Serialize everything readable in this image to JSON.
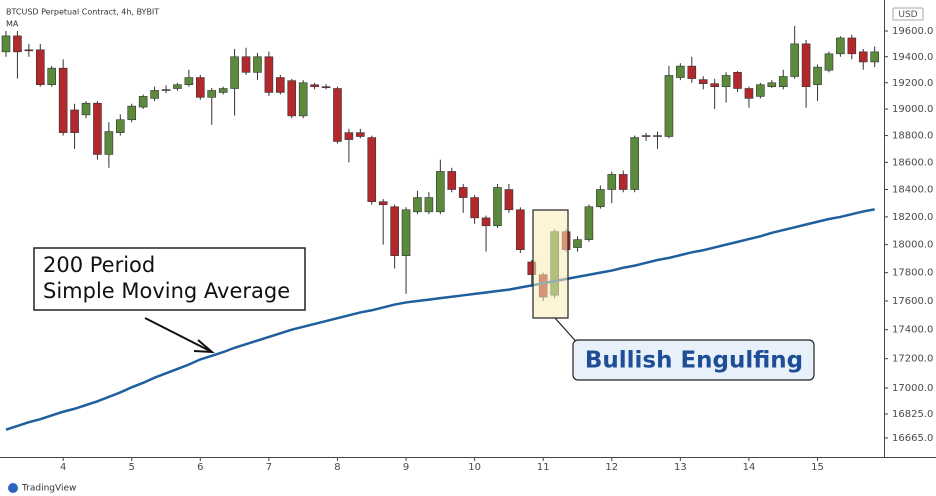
{
  "chart_data": {
    "type": "candlestick",
    "title": "BTCUSD Perpetual Contract, 4h, BYBIT",
    "currency": "USD",
    "branding": "TradingView",
    "categories": [
      null,
      null,
      null,
      null,
      null,
      "4",
      null,
      null,
      null,
      null,
      null,
      "5",
      null,
      null,
      null,
      null,
      null,
      "6",
      null,
      null,
      null,
      null,
      null,
      "7",
      null,
      null,
      null,
      null,
      null,
      "8",
      null,
      null,
      null,
      null,
      null,
      "9",
      null,
      null,
      null,
      null,
      null,
      "10",
      null,
      null,
      null,
      null,
      null,
      "11",
      null,
      null,
      null,
      null,
      null,
      "12",
      null,
      null,
      null,
      null,
      null,
      "13",
      null,
      null,
      null,
      null,
      null,
      "14",
      null,
      null,
      null,
      null,
      null,
      "15",
      null,
      null,
      null,
      null,
      null
    ],
    "open": [
      19438,
      19562,
      19454,
      19454,
      19185,
      19312,
      18993,
      18956,
      19044,
      18659,
      18822,
      18919,
      19015,
      19081,
      19141,
      19156,
      19185,
      19240,
      19089,
      19126,
      19156,
      19400,
      19280,
      19400,
      19240,
      19216,
      18948,
      19185,
      19170,
      19156,
      18822,
      18822,
      18785,
      18311,
      18274,
      17921,
      18237,
      18237,
      18237,
      18533,
      18415,
      18341,
      18193,
      18136,
      18400,
      18252,
      17876,
      17786,
      17641,
      18093,
      17979,
      18036,
      18274,
      18400,
      18511,
      18400,
      18800,
      18793,
      18793,
      19240,
      19328,
      19224,
      19193,
      19170,
      19280,
      19156,
      19096,
      19170,
      19170,
      19248,
      19500,
      19185,
      19296,
      19423,
      19546,
      19438,
      19360
    ],
    "high": [
      19600,
      19600,
      19500,
      19500,
      19330,
      19380,
      19040,
      19060,
      19060,
      18900,
      18960,
      19040,
      19110,
      19170,
      19180,
      19200,
      19300,
      19260,
      19160,
      19170,
      19460,
      19470,
      19430,
      19440,
      19260,
      19230,
      19220,
      19200,
      19190,
      19170,
      18850,
      18850,
      18800,
      18330,
      18290,
      18270,
      18390,
      18380,
      18620,
      18560,
      18440,
      18360,
      18210,
      18440,
      18440,
      18270,
      17890,
      17800,
      18110,
      18110,
      18060,
      18290,
      18430,
      18530,
      18540,
      18800,
      18820,
      18830,
      19330,
      19350,
      19400,
      19250,
      19230,
      19280,
      19290,
      19170,
      19200,
      19220,
      19300,
      19640,
      19530,
      19340,
      19440,
      19560,
      19570,
      19460,
      19480
    ],
    "low": [
      19400,
      19232,
      19400,
      19170,
      19170,
      18800,
      18700,
      18930,
      18620,
      18560,
      18800,
      18900,
      19000,
      19060,
      19120,
      19140,
      19170,
      19070,
      18880,
      19110,
      18950,
      19260,
      19220,
      19100,
      19110,
      18930,
      18930,
      19150,
      19150,
      18740,
      18600,
      18780,
      18290,
      18000,
      17830,
      17650,
      18220,
      18220,
      18220,
      18380,
      18230,
      18150,
      17950,
      18120,
      18230,
      17940,
      17700,
      17600,
      17620,
      17950,
      17950,
      18020,
      18260,
      18300,
      18380,
      18380,
      18760,
      18700,
      18780,
      19220,
      19200,
      19150,
      19000,
      19050,
      19130,
      19010,
      19080,
      19160,
      19150,
      19230,
      19010,
      19060,
      19280,
      19400,
      19380,
      19300,
      19320
    ],
    "close": [
      19562,
      19438,
      19446,
      19185,
      19312,
      18822,
      18822,
      19044,
      18659,
      18830,
      18919,
      19022,
      19096,
      19141,
      19148,
      19185,
      19240,
      19089,
      19141,
      19156,
      19400,
      19280,
      19400,
      19126,
      19126,
      18948,
      19200,
      19170,
      19163,
      18756,
      18770,
      18793,
      18311,
      18289,
      17921,
      18252,
      18341,
      18341,
      18533,
      18400,
      18341,
      18193,
      18136,
      18415,
      18252,
      17964,
      17786,
      17628,
      18093,
      17964,
      18036,
      18274,
      18400,
      18511,
      18400,
      18785,
      18793,
      18800,
      19256,
      19328,
      19232,
      19193,
      19170,
      19256,
      19156,
      19081,
      19185,
      19200,
      19248,
      19500,
      19170,
      19320,
      19423,
      19546,
      19423,
      19360,
      19438
    ],
    "up_color": "#5b8a3c",
    "down_color": "#b3282d",
    "overlay": {
      "name": "MA",
      "color": "#1f5f9e",
      "values": [
        16720,
        16745,
        16770,
        16790,
        16815,
        16840,
        16860,
        16885,
        16910,
        16940,
        16970,
        17005,
        17035,
        17070,
        17100,
        17130,
        17160,
        17195,
        17220,
        17245,
        17275,
        17300,
        17325,
        17350,
        17375,
        17400,
        17420,
        17440,
        17460,
        17480,
        17500,
        17520,
        17535,
        17555,
        17575,
        17590,
        17600,
        17610,
        17620,
        17630,
        17640,
        17650,
        17660,
        17670,
        17680,
        17695,
        17710,
        17725,
        17740,
        17755,
        17770,
        17785,
        17800,
        17815,
        17835,
        17850,
        17870,
        17890,
        17905,
        17925,
        17945,
        17960,
        17980,
        18000,
        18020,
        18040,
        18060,
        18085,
        18105,
        18125,
        18145,
        18165,
        18185,
        18200,
        18220,
        18240,
        18255
      ]
    },
    "ylim": [
      16552,
      19844
    ],
    "log_scale": true,
    "grid": false,
    "yticks": [
      {
        "value": 19600,
        "label": "19600.0"
      },
      {
        "value": 19400,
        "label": "19400.0"
      },
      {
        "value": 19200,
        "label": "19200.0"
      },
      {
        "value": 19000,
        "label": "19000.0"
      },
      {
        "value": 18800,
        "label": "18800.0"
      },
      {
        "value": 18600,
        "label": "18600.0"
      },
      {
        "value": 18400,
        "label": "18400.0"
      },
      {
        "value": 18200,
        "label": "18200.0"
      },
      {
        "value": 18000,
        "label": "18000.0"
      },
      {
        "value": 17800,
        "label": "17800.0"
      },
      {
        "value": 17600,
        "label": "17600.0"
      },
      {
        "value": 17400,
        "label": "17400.0"
      },
      {
        "value": 17200,
        "label": "17200.0"
      },
      {
        "value": 17000,
        "label": "17000.0"
      },
      {
        "value": 16825,
        "label": "16825.0"
      },
      {
        "value": 16665,
        "label": "16665.0"
      }
    ],
    "annotations": {
      "ma_note": [
        "200 Period",
        "Simple Moving Average"
      ],
      "pattern": "Bullish Engulfing"
    }
  }
}
